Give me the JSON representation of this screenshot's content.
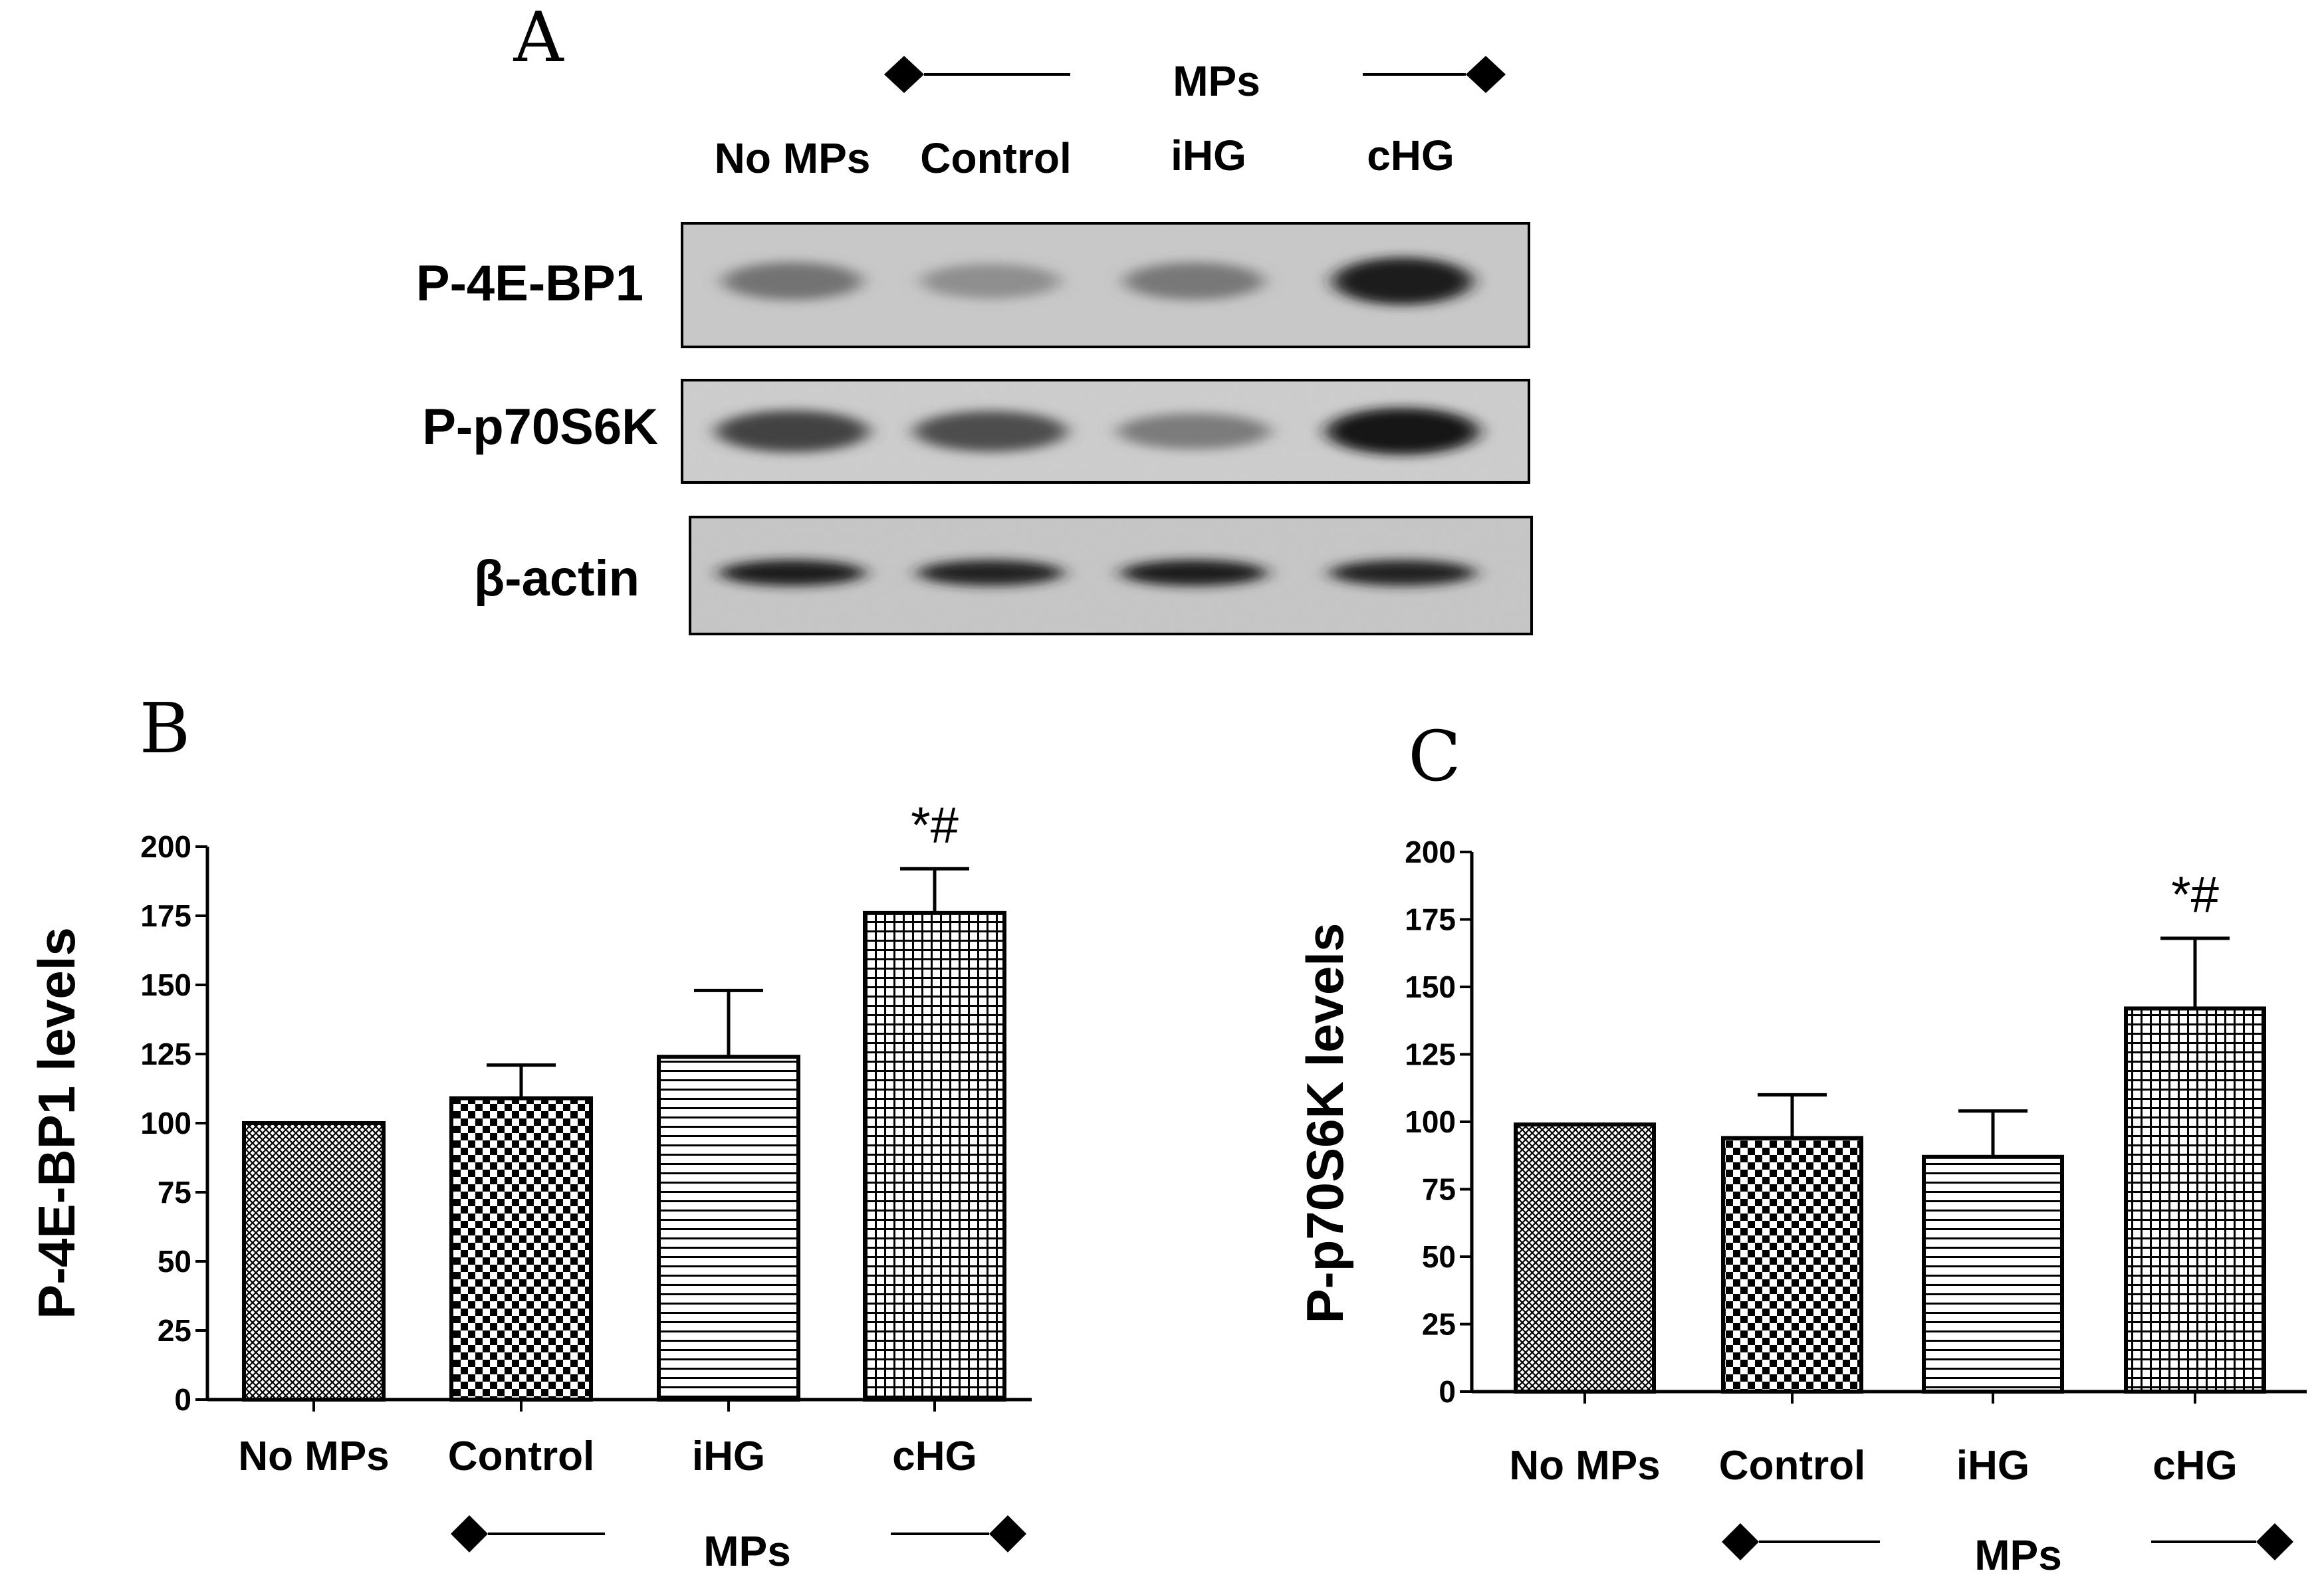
{
  "panel_a": {
    "letter": "A",
    "group_label": "MPs",
    "lanes": [
      "No MPs",
      "Control",
      "iHG",
      "cHG"
    ],
    "rows": [
      {
        "label": "P-4E-BP1",
        "band_intensity": [
          0.45,
          0.3,
          0.42,
          0.9
        ]
      },
      {
        "label": "P-p70S6K",
        "band_intensity": [
          0.7,
          0.65,
          0.4,
          0.95
        ]
      },
      {
        "label": "β-actin",
        "band_intensity": [
          0.9,
          0.88,
          0.9,
          0.88
        ]
      }
    ]
  },
  "panel_b": {
    "letter": "B",
    "group_label": "MPs"
  },
  "panel_c": {
    "letter": "C",
    "group_label": "MPs"
  },
  "chart_data": [
    {
      "type": "bar",
      "ylabel": "P-4E-BP1 levels",
      "categories": [
        "No MPs",
        "Control",
        "iHG",
        "cHG"
      ],
      "values": [
        100,
        109,
        124,
        176
      ],
      "error": [
        0,
        12,
        24,
        16
      ],
      "patterns": [
        "crosshatch-fine",
        "checker",
        "horizontal",
        "grid"
      ],
      "annotations": [
        "",
        "",
        "",
        "*#"
      ],
      "ylim": [
        0,
        200
      ],
      "yticks": [
        0,
        25,
        50,
        75,
        100,
        125,
        150,
        175,
        200
      ],
      "grid": false
    },
    {
      "type": "bar",
      "ylabel": "P-p70S6K levels",
      "categories": [
        "No MPs",
        "Control",
        "iHG",
        "cHG"
      ],
      "values": [
        99,
        94,
        87,
        142
      ],
      "error": [
        0,
        16,
        17,
        26
      ],
      "patterns": [
        "crosshatch-fine",
        "checker",
        "horizontal",
        "grid"
      ],
      "annotations": [
        "",
        "",
        "",
        "*#"
      ],
      "ylim": [
        0,
        200
      ],
      "yticks": [
        0,
        25,
        50,
        75,
        100,
        125,
        150,
        175,
        200
      ],
      "grid": false
    }
  ]
}
